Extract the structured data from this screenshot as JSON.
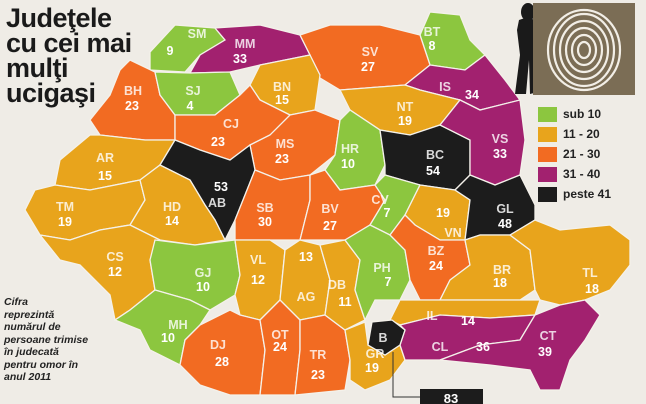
{
  "title": [
    "Judeţele",
    "cu cei mai",
    "mulţi",
    "ucigaşi"
  ],
  "note": [
    "Cifra",
    "reprezintă",
    "numărul de",
    "persoane trimise",
    "în judecată",
    "pentru omor în",
    "anul 2011"
  ],
  "legend": [
    {
      "label": "sub 10",
      "color": "#8cc63f"
    },
    {
      "label": "11 - 20",
      "color": "#e8a41c"
    },
    {
      "label": "21 - 30",
      "color": "#f26b22"
    },
    {
      "label": "31 - 40",
      "color": "#a2216f"
    },
    {
      "label": "peste 41",
      "color": "#1c1c1c"
    }
  ],
  "counties": [
    {
      "code": "SM",
      "value": "9",
      "cat": 0
    },
    {
      "code": "MM",
      "value": "33",
      "cat": 3
    },
    {
      "code": "BT",
      "value": "8",
      "cat": 0
    },
    {
      "code": "SV",
      "value": "27",
      "cat": 2
    },
    {
      "code": "BH",
      "value": "23",
      "cat": 2
    },
    {
      "code": "SJ",
      "value": "4",
      "cat": 0
    },
    {
      "code": "BN",
      "value": "15",
      "cat": 1
    },
    {
      "code": "IS",
      "value": "34",
      "cat": 3
    },
    {
      "code": "NT",
      "value": "19",
      "cat": 1
    },
    {
      "code": "CJ",
      "value": "23",
      "cat": 2
    },
    {
      "code": "MS",
      "value": "23",
      "cat": 2
    },
    {
      "code": "HR",
      "value": "10",
      "cat": 0
    },
    {
      "code": "BC",
      "value": "54",
      "cat": 4
    },
    {
      "code": "VS",
      "value": "33",
      "cat": 3
    },
    {
      "code": "AR",
      "value": "15",
      "cat": 1
    },
    {
      "code": "AB",
      "value": "53",
      "cat": 4
    },
    {
      "code": "TM",
      "value": "19",
      "cat": 1
    },
    {
      "code": "HD",
      "value": "14",
      "cat": 1
    },
    {
      "code": "SB",
      "value": "30",
      "cat": 2
    },
    {
      "code": "BV",
      "value": "27",
      "cat": 2
    },
    {
      "code": "CV",
      "value": "7",
      "cat": 0
    },
    {
      "code": "VN",
      "value": "19",
      "cat": 1
    },
    {
      "code": "GL",
      "value": "48",
      "cat": 4
    },
    {
      "code": "CS",
      "value": "12",
      "cat": 1
    },
    {
      "code": "GJ",
      "value": "10",
      "cat": 0
    },
    {
      "code": "VL",
      "value": "12",
      "cat": 1
    },
    {
      "code": "AG",
      "value": "13",
      "cat": 1
    },
    {
      "code": "MH",
      "value": "10",
      "cat": 0
    },
    {
      "code": "DJ",
      "value": "28",
      "cat": 2
    },
    {
      "code": "OT",
      "value": "24",
      "cat": 2
    },
    {
      "code": "TR",
      "value": "23",
      "cat": 2
    },
    {
      "code": "DB",
      "value": "11",
      "cat": 1
    },
    {
      "code": "PH",
      "value": "7",
      "cat": 0
    },
    {
      "code": "BZ",
      "value": "24",
      "cat": 2
    },
    {
      "code": "BR",
      "value": "18",
      "cat": 1
    },
    {
      "code": "TL",
      "value": "18",
      "cat": 1
    },
    {
      "code": "IL",
      "value": "14",
      "cat": 1
    },
    {
      "code": "GR",
      "value": "19",
      "cat": 1
    },
    {
      "code": "CL",
      "value": "36",
      "cat": 3
    },
    {
      "code": "CT",
      "value": "39",
      "cat": 3
    },
    {
      "code": "B",
      "value": "83",
      "cat": 4
    }
  ]
}
